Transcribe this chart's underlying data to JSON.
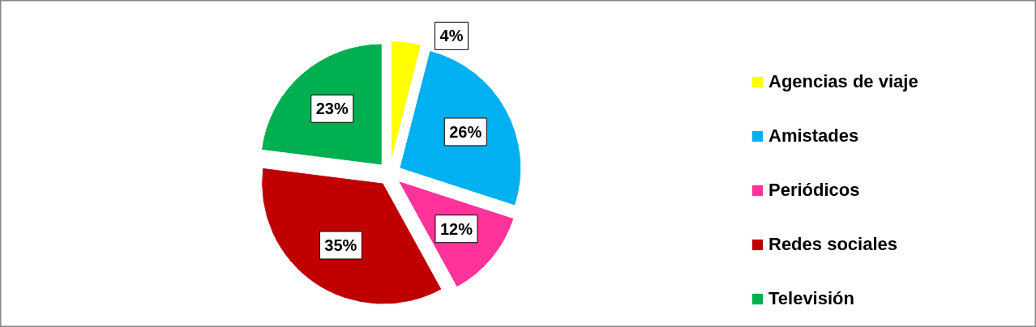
{
  "chart_data": {
    "type": "pie",
    "categories": [
      "Agencias de viaje",
      "Amistades",
      "Periódicos",
      "Redes sociales",
      "Televisión"
    ],
    "values": [
      4,
      26,
      12,
      35,
      23
    ],
    "colors": [
      "#ffff00",
      "#00b0f0",
      "#ff3399",
      "#c00000",
      "#00b050"
    ],
    "value_labels": [
      "4%",
      "26%",
      "12%",
      "35%",
      "23%"
    ],
    "legend": "right"
  }
}
